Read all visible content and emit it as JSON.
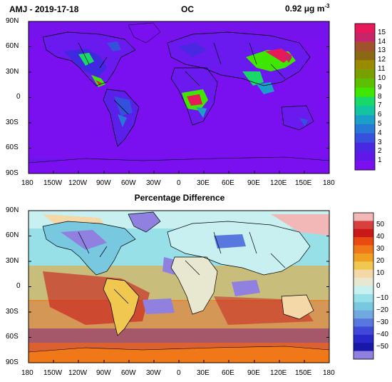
{
  "top_panel": {
    "left_title": "AMJ - 2019-17-18",
    "center_title": "OC",
    "right_title_value": "0.92",
    "right_title_units": "μg m",
    "right_title_exp": "-3",
    "lat_labels": [
      "90N",
      "60N",
      "30N",
      "0",
      "30S",
      "60S",
      "90S"
    ],
    "lon_labels": [
      "180",
      "150W",
      "120W",
      "90W",
      "60W",
      "30W",
      "0",
      "30E",
      "60E",
      "90E",
      "120E",
      "150E",
      "180"
    ],
    "colorbar": {
      "labels": [
        "15",
        "14",
        "13",
        "12",
        "11",
        "10",
        "9",
        "8",
        "7",
        "6",
        "5",
        "4",
        "3",
        "2",
        "1"
      ],
      "colors": [
        "#e8195a",
        "#c8246a",
        "#a0522d",
        "#8b6914",
        "#9a8a00",
        "#7aa000",
        "#5cc000",
        "#3ee600",
        "#19d86a",
        "#14c4a0",
        "#1aa0c8",
        "#2878d8",
        "#3450dc",
        "#4828e0",
        "#6018e8",
        "#7a10f0"
      ]
    }
  },
  "bottom_panel": {
    "title": "Percentage Difference",
    "lat_labels": [
      "90N",
      "60N",
      "30N",
      "0",
      "30S",
      "60S",
      "90S"
    ],
    "lon_labels": [
      "180",
      "150W",
      "120W",
      "90W",
      "60W",
      "30W",
      "0",
      "30E",
      "60E",
      "90E",
      "120E",
      "150E",
      "180"
    ],
    "colorbar": {
      "labels": [
        "50",
        "40",
        "30",
        "20",
        "10",
        "0",
        "−10",
        "−20",
        "−30",
        "−40",
        "−50"
      ],
      "colors": [
        "#f2b8b8",
        "#d84040",
        "#c81818",
        "#e84a10",
        "#f07818",
        "#f0a020",
        "#f0c850",
        "#f4d8a8",
        "#e8e8d0",
        "#c8f0f0",
        "#98e0e8",
        "#78c8e0",
        "#70a8e0",
        "#5878e0",
        "#4048d8",
        "#2828c8",
        "#1818a8",
        "#9080e0"
      ]
    }
  }
}
